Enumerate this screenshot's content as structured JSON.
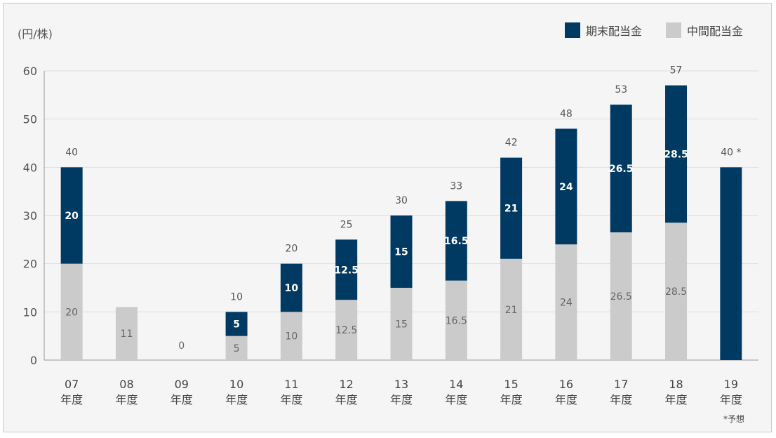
{
  "unit_label": "(円/株)",
  "footnote": "*予想",
  "colors": {
    "final": "#003a63",
    "interim": "#cbcbcb",
    "grid": "#dcdcdc"
  },
  "chart_data": {
    "type": "bar",
    "stacked": true,
    "categories": [
      "07",
      "08",
      "09",
      "10",
      "11",
      "12",
      "13",
      "14",
      "15",
      "16",
      "17",
      "18",
      "19"
    ],
    "category_suffix": "年度",
    "series": [
      {
        "name": "中間配当金",
        "values": [
          20,
          11,
          0,
          5,
          10,
          12.5,
          15,
          16.5,
          21,
          24,
          26.5,
          28.5,
          0
        ]
      },
      {
        "name": "期末配当金",
        "values": [
          20,
          0,
          0,
          5,
          10,
          12.5,
          15,
          16.5,
          21,
          24,
          26.5,
          28.5,
          40
        ]
      }
    ],
    "totals": [
      "40",
      "11",
      "0",
      "10",
      "20",
      "25",
      "30",
      "33",
      "42",
      "48",
      "53",
      "57",
      "40 *"
    ],
    "segment_labels_interim": [
      "20",
      "11",
      "0",
      "5",
      "10",
      "12.5",
      "15",
      "16.5",
      "21",
      "24",
      "26.5",
      "28.5",
      ""
    ],
    "segment_labels_final": [
      "20",
      "",
      "",
      "5",
      "10",
      "12.5",
      "15",
      "16.5",
      "21",
      "24",
      "26.5",
      "28.5",
      ""
    ],
    "show_total": [
      true,
      false,
      false,
      true,
      true,
      true,
      true,
      true,
      true,
      true,
      true,
      true,
      true
    ],
    "ylim": [
      0,
      60
    ],
    "yticks": [
      0,
      10,
      20,
      30,
      40,
      50,
      60
    ],
    "grid": true,
    "legend_position": "top-right"
  }
}
